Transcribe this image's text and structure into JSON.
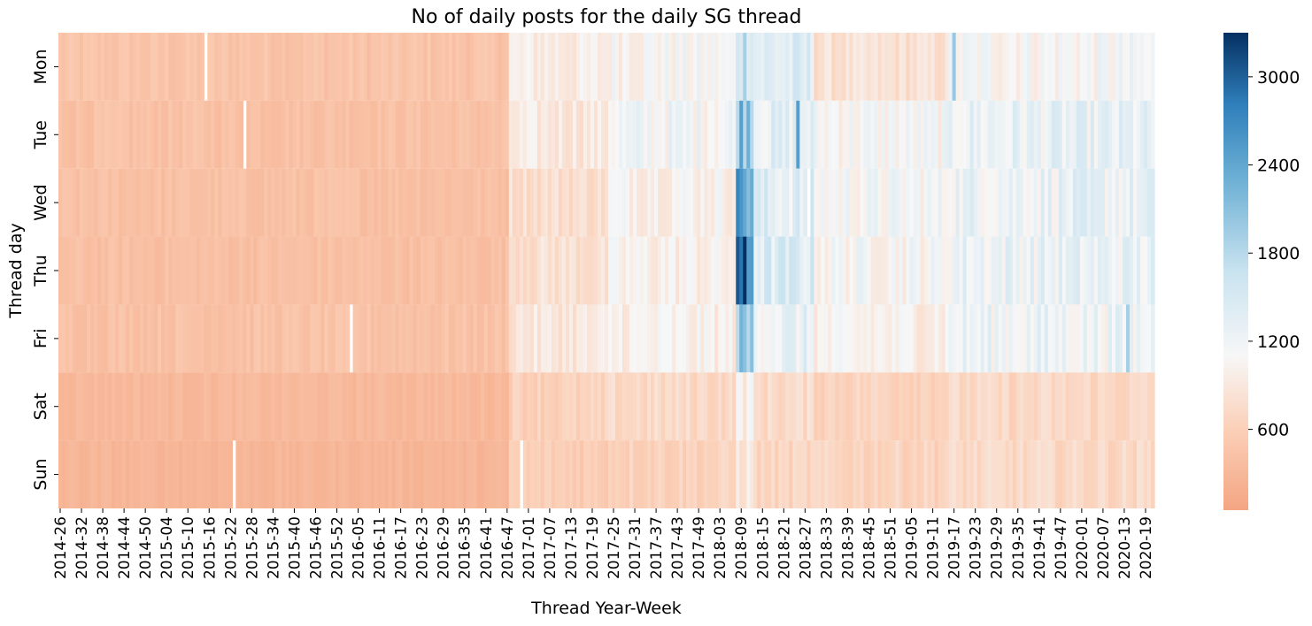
{
  "chart_data": {
    "type": "heatmap",
    "title": "No of daily posts for the daily SG thread",
    "xlabel": "Thread Year-Week",
    "ylabel": "Thread day",
    "y_categories": [
      "Mon",
      "Tue",
      "Wed",
      "Thu",
      "Fri",
      "Sat",
      "Sun"
    ],
    "x_tick_labels": [
      "2014-26",
      "2014-32",
      "2014-38",
      "2014-44",
      "2014-50",
      "2015-04",
      "2015-10",
      "2015-16",
      "2015-22",
      "2015-28",
      "2015-34",
      "2015-40",
      "2015-46",
      "2015-52",
      "2016-05",
      "2016-11",
      "2016-17",
      "2016-23",
      "2016-29",
      "2016-35",
      "2016-41",
      "2016-47",
      "2017-01",
      "2017-07",
      "2017-13",
      "2017-19",
      "2017-25",
      "2017-31",
      "2017-37",
      "2017-43",
      "2017-49",
      "2018-03",
      "2018-09",
      "2018-15",
      "2018-21",
      "2018-27",
      "2018-33",
      "2018-39",
      "2018-45",
      "2018-51",
      "2019-05",
      "2019-11",
      "2019-17",
      "2019-23",
      "2019-29",
      "2019-35",
      "2019-41",
      "2019-47",
      "2020-01",
      "2020-07",
      "2020-13",
      "2020-19"
    ],
    "colorbar": {
      "ticks": [
        600,
        1200,
        1800,
        2400,
        3000
      ],
      "vmin": 50,
      "vmax": 3300,
      "center": 1100,
      "colormap": "RdBu diverging (orange to white to blue)"
    },
    "segments": [
      {
        "weeks": "2014-26 to 2016-48",
        "Mon": 430,
        "Tue": 400,
        "Wed": 390,
        "Thu": 380,
        "Fri": 410,
        "Sat": 300,
        "Sun": 260
      },
      {
        "weeks": "2016-49 to 2017-24",
        "Mon": 950,
        "Tue": 900,
        "Wed": 780,
        "Thu": 800,
        "Fri": 880,
        "Sat": 600,
        "Sun": 560
      },
      {
        "weeks": "2017-25 to 2018-08",
        "Mon": 1080,
        "Tue": 1150,
        "Wed": 1050,
        "Thu": 1000,
        "Fri": 1000,
        "Sat": 700,
        "Sun": 620
      },
      {
        "weeks": "2018-09 to 2018-13",
        "Mon": 1700,
        "Tue": 2200,
        "Wed": 2400,
        "Thu": 2600,
        "Fri": 1900,
        "Sat": 1000,
        "Sun": 900
      },
      {
        "weeks": "2018-14 to 2018-30",
        "Mon": 1350,
        "Tue": 1300,
        "Wed": 1350,
        "Thu": 1400,
        "Fri": 1250,
        "Sat": 720,
        "Sun": 650
      },
      {
        "weeks": "2018-31 to 2019-16",
        "Mon": 800,
        "Tue": 1100,
        "Wed": 1120,
        "Thu": 1100,
        "Fri": 1000,
        "Sat": 650,
        "Sun": 650
      },
      {
        "weeks": "2019-17 to 2020-23",
        "Mon": 1100,
        "Tue": 1250,
        "Wed": 1250,
        "Thu": 1250,
        "Fri": 1200,
        "Sat": 680,
        "Sun": 700
      }
    ],
    "highlights": [
      {
        "week": "2018-11",
        "day": "Thu",
        "value": 3300
      },
      {
        "week": "2018-10",
        "day": "Wed",
        "value": 2600
      },
      {
        "week": "2018-26",
        "day": "Tue",
        "value": 2500
      },
      {
        "week": "2019-18",
        "day": "Mon",
        "value": 2000
      },
      {
        "week": "2020-14",
        "day": "Fri",
        "value": 1900
      }
    ],
    "missing": [
      {
        "week": "2015-15",
        "day": "Mon"
      },
      {
        "week": "2015-26",
        "day": "Tue"
      },
      {
        "week": "2015-56",
        "day": "Fri"
      },
      {
        "week": "2015-23",
        "day": "Sun"
      },
      {
        "week": "2016-52",
        "day": "Sun"
      },
      {
        "week": "2018-29",
        "day": "Wed"
      }
    ]
  }
}
